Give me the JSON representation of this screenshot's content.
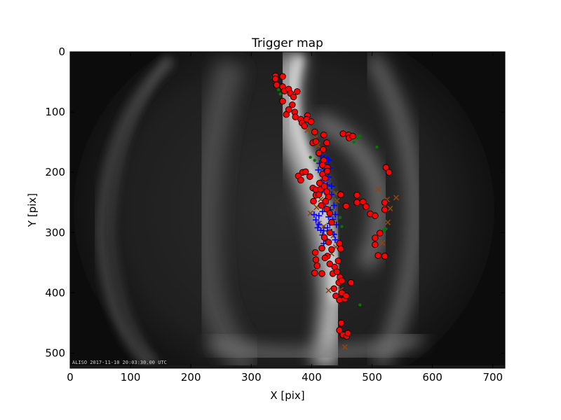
{
  "chart_data": {
    "type": "scatter",
    "title": "Trigger map",
    "xlabel": "X [pix]",
    "ylabel": "Y [pix]",
    "xlim": [
      0,
      720
    ],
    "ylim": [
      525,
      0
    ],
    "x_ticks": [
      0,
      100,
      200,
      300,
      400,
      500,
      600,
      700
    ],
    "y_ticks": [
      0,
      100,
      200,
      300,
      400,
      500
    ],
    "grid": false,
    "background_image": "all-sky camera frame with aurora arc",
    "timestamp_label": "ALISO 2017-11-10 20:03:30.00 UTC",
    "series": [
      {
        "marker": "circle",
        "color": "#ff0000",
        "edge": "#000000",
        "points": [
          [
            340,
            40
          ],
          [
            340,
            45
          ],
          [
            352,
            41
          ],
          [
            342,
            55
          ],
          [
            352,
            58
          ],
          [
            355,
            65
          ],
          [
            362,
            62
          ],
          [
            365,
            69
          ],
          [
            370,
            75
          ],
          [
            376,
            66
          ],
          [
            352,
            82
          ],
          [
            368,
            88
          ],
          [
            362,
            96
          ],
          [
            372,
            100
          ],
          [
            373,
            108
          ],
          [
            358,
            104
          ],
          [
            382,
            112
          ],
          [
            384,
            118
          ],
          [
            388,
            123
          ],
          [
            393,
            106
          ],
          [
            392,
            112
          ],
          [
            399,
            116
          ],
          [
            405,
            133
          ],
          [
            402,
            151
          ],
          [
            407,
            149
          ],
          [
            420,
            138
          ],
          [
            425,
            151
          ],
          [
            419,
            162
          ],
          [
            412,
            168
          ],
          [
            420,
            180
          ],
          [
            418,
            188
          ],
          [
            426,
            192
          ],
          [
            418,
            203
          ],
          [
            422,
            210
          ],
          [
            426,
            198
          ],
          [
            385,
            200
          ],
          [
            378,
            206
          ],
          [
            382,
            213
          ],
          [
            390,
            199
          ],
          [
            397,
            207
          ],
          [
            402,
            226
          ],
          [
            407,
            229
          ],
          [
            407,
            238
          ],
          [
            403,
            248
          ],
          [
            412,
            237
          ],
          [
            413,
            218
          ],
          [
            415,
            228
          ],
          [
            421,
            223
          ],
          [
            425,
            232
          ],
          [
            428,
            241
          ],
          [
            423,
            248
          ],
          [
            416,
            255
          ],
          [
            425,
            261
          ],
          [
            430,
            268
          ],
          [
            433,
            283
          ],
          [
            430,
            300
          ],
          [
            428,
            316
          ],
          [
            433,
            328
          ],
          [
            426,
            339
          ],
          [
            430,
            352
          ],
          [
            438,
            357
          ],
          [
            435,
            368
          ],
          [
            442,
            365
          ],
          [
            447,
            374
          ],
          [
            445,
            383
          ],
          [
            437,
            393
          ],
          [
            440,
            405
          ],
          [
            446,
            412
          ],
          [
            450,
            400
          ],
          [
            455,
            410
          ],
          [
            457,
            405
          ],
          [
            449,
            450
          ],
          [
            446,
            462
          ],
          [
            452,
            470
          ],
          [
            458,
            472
          ],
          [
            460,
            467
          ],
          [
            421,
            308
          ],
          [
            417,
            326
          ],
          [
            422,
            342
          ],
          [
            406,
            333
          ],
          [
            407,
            345
          ],
          [
            409,
            355
          ],
          [
            405,
            367
          ],
          [
            417,
            368
          ],
          [
            446,
            318
          ],
          [
            448,
            327
          ],
          [
            444,
            347
          ],
          [
            450,
            380
          ],
          [
            465,
            383
          ],
          [
            452,
            136
          ],
          [
            461,
            138
          ],
          [
            462,
            143
          ],
          [
            468,
            140
          ],
          [
            475,
            238
          ],
          [
            448,
            237
          ],
          [
            457,
            256
          ],
          [
            485,
            249
          ],
          [
            475,
            250
          ],
          [
            490,
            257
          ],
          [
            497,
            269
          ],
          [
            523,
            192
          ],
          [
            528,
            200
          ],
          [
            521,
            250
          ],
          [
            521,
            262
          ],
          [
            505,
            272
          ],
          [
            513,
            301
          ],
          [
            505,
            309
          ],
          [
            505,
            320
          ],
          [
            510,
            338
          ],
          [
            521,
            339
          ]
        ]
      },
      {
        "marker": "plus",
        "color": "#0000ff",
        "points": [
          [
            415,
            173
          ],
          [
            421,
            176
          ],
          [
            426,
            178
          ],
          [
            428,
            180
          ],
          [
            413,
            185
          ],
          [
            418,
            190
          ],
          [
            411,
            196
          ],
          [
            430,
            193
          ],
          [
            420,
            200
          ],
          [
            428,
            208
          ],
          [
            416,
            217
          ],
          [
            426,
            221
          ],
          [
            433,
            223
          ],
          [
            418,
            230
          ],
          [
            433,
            237
          ],
          [
            425,
            245
          ],
          [
            423,
            252
          ],
          [
            437,
            255
          ],
          [
            431,
            262
          ],
          [
            439,
            270
          ],
          [
            428,
            274
          ],
          [
            435,
            278
          ],
          [
            430,
            285
          ],
          [
            441,
            287
          ],
          [
            426,
            292
          ],
          [
            433,
            299
          ],
          [
            437,
            303
          ],
          [
            439,
            312
          ],
          [
            428,
            316
          ],
          [
            418,
            265
          ],
          [
            412,
            272
          ],
          [
            404,
            270
          ],
          [
            407,
            279
          ],
          [
            412,
            286
          ],
          [
            410,
            292
          ],
          [
            415,
            296
          ],
          [
            418,
            304
          ],
          [
            420,
            297
          ],
          [
            422,
            310
          ],
          [
            420,
            318
          ]
        ]
      },
      {
        "marker": "x",
        "color": "#8b4513",
        "points": [
          [
            393,
            130
          ],
          [
            403,
            150
          ],
          [
            410,
            155
          ],
          [
            418,
            215
          ],
          [
            422,
            250
          ],
          [
            425,
            240
          ],
          [
            415,
            245
          ],
          [
            408,
            258
          ],
          [
            398,
            268
          ],
          [
            412,
            285
          ],
          [
            420,
            290
          ],
          [
            436,
            305
          ],
          [
            440,
            324
          ],
          [
            433,
            335
          ],
          [
            428,
            396
          ],
          [
            448,
            395
          ],
          [
            455,
            490
          ],
          [
            510,
            228
          ],
          [
            540,
            242
          ],
          [
            525,
            245
          ],
          [
            530,
            260
          ],
          [
            526,
            283
          ],
          [
            517,
            317
          ],
          [
            400,
            132
          ],
          [
            406,
            143
          ],
          [
            440,
            235
          ],
          [
            442,
            247
          ]
        ]
      },
      {
        "marker": "dot",
        "color": "#007700",
        "points": [
          [
            336,
            42
          ],
          [
            340,
            50
          ],
          [
            345,
            63
          ],
          [
            348,
            70
          ],
          [
            398,
            175
          ],
          [
            405,
            180
          ],
          [
            415,
            180
          ],
          [
            425,
            200
          ],
          [
            447,
            275
          ],
          [
            450,
            290
          ],
          [
            420,
            290
          ],
          [
            475,
            143
          ],
          [
            480,
            140
          ],
          [
            470,
            150
          ],
          [
            508,
            158
          ],
          [
            480,
            420
          ],
          [
            445,
            410
          ],
          [
            519,
            296
          ],
          [
            523,
            294
          ]
        ]
      }
    ]
  }
}
